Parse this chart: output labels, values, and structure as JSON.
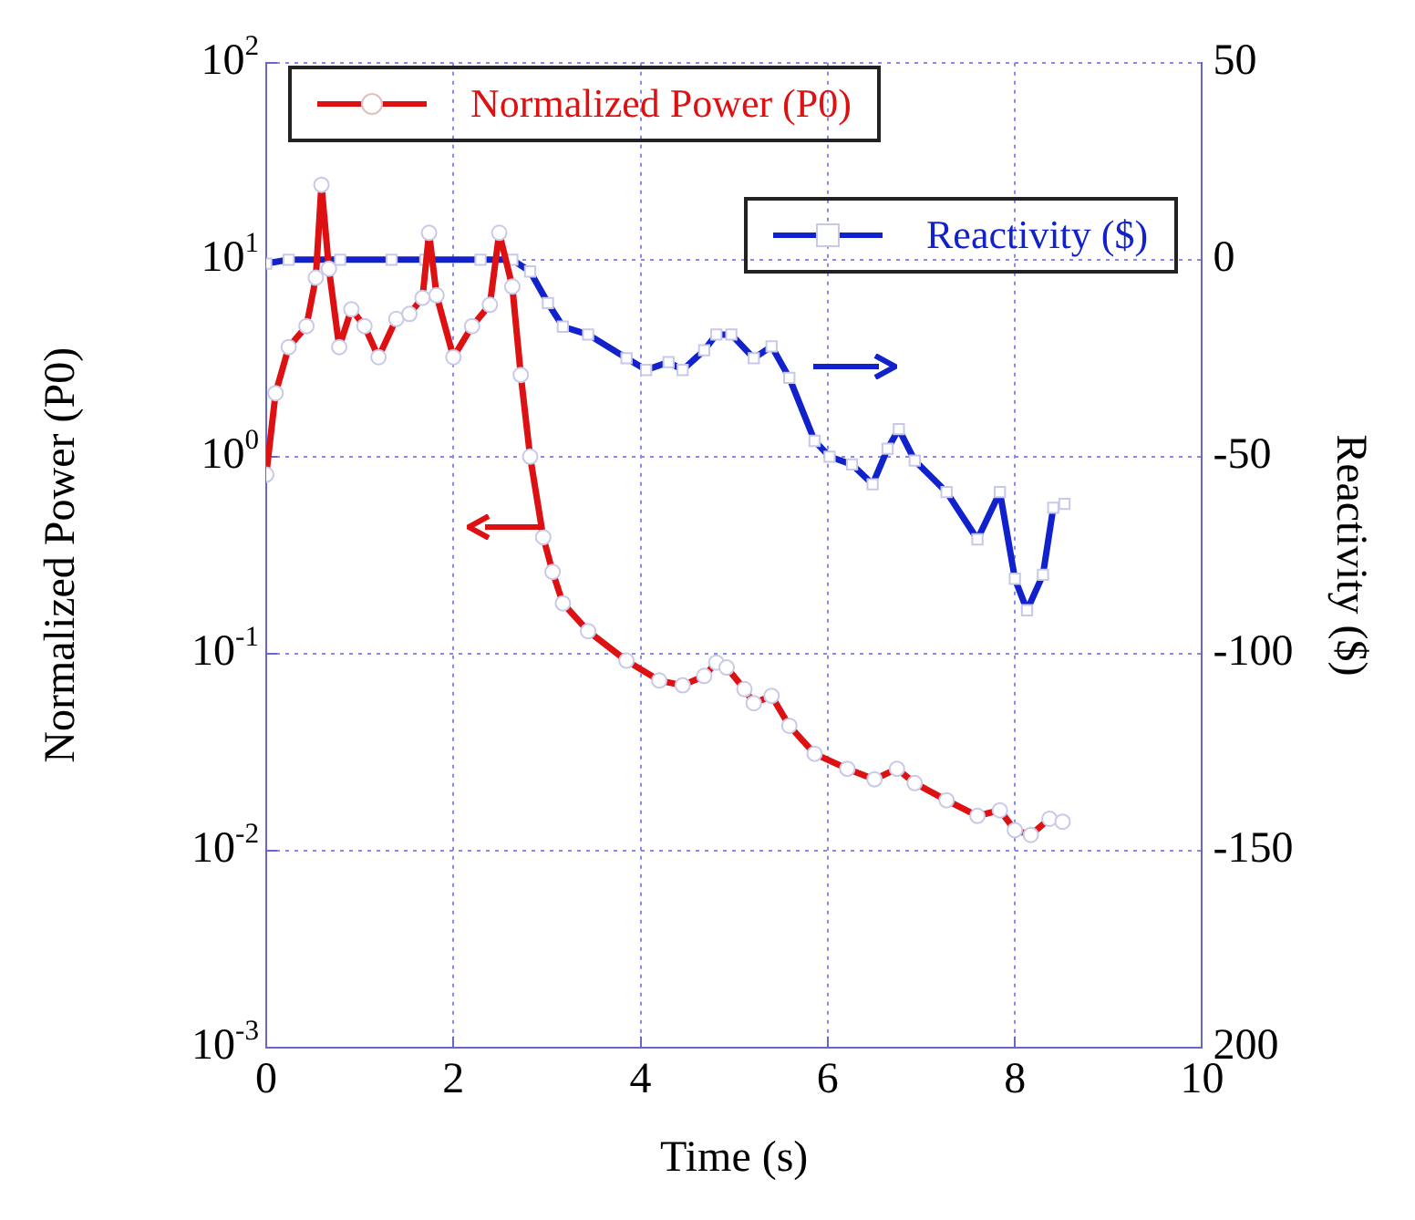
{
  "chart_data": {
    "type": "line",
    "xlabel": "Time (s)",
    "ylabel": "Normalized Power (P0)",
    "y2label": "Reactivity ($)",
    "xlim": [
      0,
      10
    ],
    "xticks": [
      0,
      2,
      4,
      6,
      8,
      10
    ],
    "ylim": [
      0.001,
      100
    ],
    "yticks": [
      {
        "value": 100,
        "label": "10$^{2}$"
      },
      {
        "value": 10,
        "label": "10$^{1}$"
      },
      {
        "value": 1,
        "label": "10$^{0}$"
      },
      {
        "value": 0.1,
        "label": "10$^{-1}$"
      },
      {
        "value": 0.01,
        "label": "10$^{-2}$"
      },
      {
        "value": 0.001,
        "label": "10$^{-3}$"
      }
    ],
    "y2lim": [
      -200,
      50
    ],
    "y2ticks": [
      50,
      0,
      -50,
      -100,
      -150,
      {
        "value": -200,
        "label": "200"
      }
    ],
    "log": "y",
    "grid": true,
    "legend": "top left",
    "line_style": "solid",
    "series": [
      {
        "name": "Normalized Power (P0)",
        "color": "#dd1111",
        "marker": "circle",
        "x": [
          0,
          0.1,
          0.24,
          0.43,
          0.53,
          0.59,
          0.67,
          0.78,
          0.91,
          1.05,
          1.2,
          1.39,
          1.53,
          1.67,
          1.74,
          1.82,
          2.0,
          2.2,
          2.39,
          2.49,
          2.63,
          2.72,
          2.82,
          2.96,
          3.06,
          3.17,
          3.44,
          3.85,
          4.2,
          4.45,
          4.68,
          4.81,
          4.92,
          5.11,
          5.21,
          5.4,
          5.59,
          5.86,
          6.21,
          6.5,
          6.74,
          6.93,
          7.27,
          7.6,
          7.84,
          8.0,
          8.17,
          8.37,
          8.51
        ],
        "values": [
          0.81,
          2.1,
          3.6,
          4.6,
          8.1,
          24,
          9,
          3.6,
          5.6,
          4.6,
          3.2,
          5.0,
          5.3,
          6.4,
          13.7,
          6.6,
          3.2,
          4.6,
          5.9,
          13.7,
          7.3,
          2.6,
          1.0,
          0.39,
          0.26,
          0.18,
          0.13,
          0.092,
          0.073,
          0.069,
          0.077,
          0.09,
          0.085,
          0.066,
          0.056,
          0.061,
          0.043,
          0.031,
          0.026,
          0.023,
          0.026,
          0.022,
          0.018,
          0.015,
          0.016,
          0.0127,
          0.012,
          0.0145,
          0.014
        ]
      },
      {
        "name": "Reactivity ($)",
        "color": "#1122cc",
        "marker": "square",
        "axis": "y2",
        "x": [
          0,
          0.24,
          0.79,
          1.34,
          1.7,
          2.29,
          2.63,
          2.82,
          3.01,
          3.17,
          3.44,
          3.85,
          4.06,
          4.3,
          4.45,
          4.68,
          4.81,
          4.97,
          5.21,
          5.4,
          5.59,
          5.86,
          6.02,
          6.26,
          6.48,
          6.64,
          6.76,
          6.93,
          7.27,
          7.6,
          7.84,
          8.0,
          8.13,
          8.3,
          8.41,
          8.53
        ],
        "values": [
          -1,
          0,
          0,
          0,
          0,
          0,
          0,
          -3,
          -11,
          -17,
          -19,
          -25,
          -28,
          -26,
          -28,
          -23,
          -19,
          -19,
          -25,
          -22,
          -30,
          -46,
          -50,
          -52,
          -57,
          -48,
          -43,
          -51,
          -59,
          -71,
          -59,
          -81,
          -89,
          -80,
          -63,
          -62
        ]
      }
    ]
  }
}
